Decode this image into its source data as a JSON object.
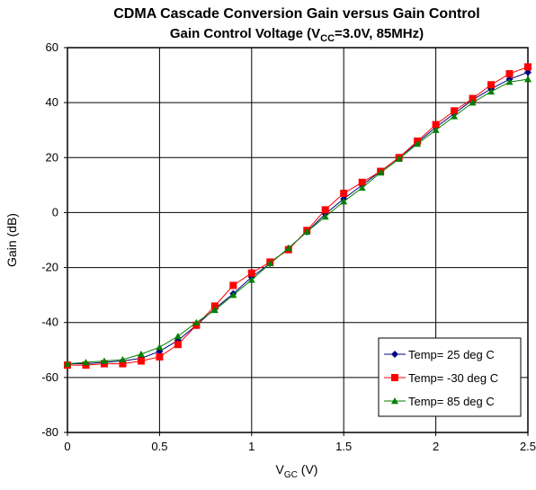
{
  "chart_data": {
    "type": "line",
    "title": "CDMA Cascade Conversion Gain versus Gain Control",
    "subtitle_parts": [
      "Gain Control Voltage (V",
      "CC",
      "=3.0V, 85MHz)"
    ],
    "xlabel_parts": [
      "V",
      "GC",
      " (V)"
    ],
    "ylabel": "Gain (dB)",
    "x": [
      0,
      0.1,
      0.2,
      0.3,
      0.4,
      0.5,
      0.6,
      0.7,
      0.8,
      0.9,
      1.0,
      1.1,
      1.2,
      1.3,
      1.4,
      1.5,
      1.6,
      1.7,
      1.8,
      1.9,
      2.0,
      2.1,
      2.2,
      2.3,
      2.4,
      2.5
    ],
    "series": [
      {
        "name": "Temp= 25 deg C",
        "color": "#000080",
        "marker": "diamond",
        "values": [
          -55,
          -55,
          -54.5,
          -54,
          -53,
          -50.5,
          -46.5,
          -41,
          -35,
          -29.5,
          -23.5,
          -18.5,
          -13,
          -7,
          -0.5,
          5,
          10,
          15,
          20,
          25.5,
          31,
          36,
          41,
          45,
          48.5,
          51
        ]
      },
      {
        "name": "Temp= -30 deg C",
        "color": "#ff0000",
        "marker": "square",
        "values": [
          -55.5,
          -55.5,
          -55,
          -55,
          -54,
          -52.5,
          -48,
          -41,
          -34,
          -26.5,
          -22,
          -18,
          -13.5,
          -6.5,
          1,
          7,
          11,
          15,
          20,
          26,
          32,
          37,
          41.5,
          46.5,
          50.5,
          53
        ]
      },
      {
        "name": "Temp= 85 deg C",
        "color": "#008000",
        "marker": "triangle",
        "values": [
          -55,
          -54.5,
          -54,
          -53.5,
          -51.5,
          -49,
          -45,
          -40,
          -35.5,
          -30,
          -24.5,
          -18.5,
          -13,
          -7,
          -1.5,
          4,
          9,
          14.5,
          19.5,
          25,
          30,
          35,
          40,
          44,
          47.5,
          48.5
        ]
      }
    ],
    "xlim": [
      0,
      2.5
    ],
    "xticks": [
      0,
      0.5,
      1,
      1.5,
      2,
      2.5
    ],
    "ylim": [
      -80,
      60
    ],
    "yticks": [
      -80,
      -60,
      -40,
      -20,
      0,
      20,
      40,
      60
    ],
    "grid": true,
    "legend": "lower right"
  }
}
